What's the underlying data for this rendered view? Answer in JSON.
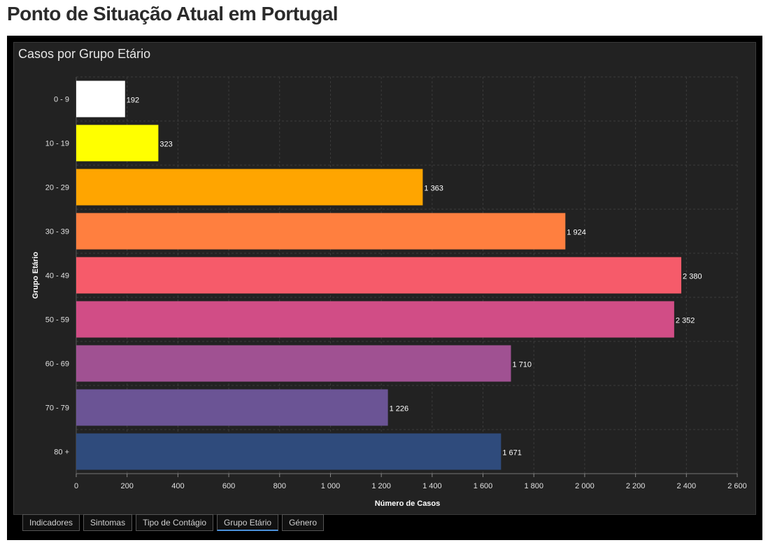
{
  "page": {
    "title": "Ponto de Situação Atual em Portugal"
  },
  "panel": {
    "title": "Casos por Grupo Etário"
  },
  "tabs": [
    {
      "label": "Indicadores",
      "active": false
    },
    {
      "label": "Sintomas",
      "active": false
    },
    {
      "label": "Tipo de Contágio",
      "active": false
    },
    {
      "label": "Grupo Etário",
      "active": true
    },
    {
      "label": "Género",
      "active": false
    }
  ],
  "chart_data": {
    "type": "bar",
    "orientation": "horizontal",
    "categories": [
      "0 - 9",
      "10 - 19",
      "20 - 29",
      "30 - 39",
      "40 - 49",
      "50 - 59",
      "60 - 69",
      "70 - 79",
      "80 +"
    ],
    "values": [
      192,
      323,
      1363,
      1924,
      2380,
      2352,
      1710,
      1226,
      1671
    ],
    "value_labels": [
      "192",
      "323",
      "1 363",
      "1 924",
      "2 380",
      "2 352",
      "1 710",
      "1 226",
      "1 671"
    ],
    "colors": [
      "#ffffff",
      "#ffff00",
      "#ffa500",
      "#ff7f3f",
      "#f65b6a",
      "#d14d86",
      "#a05192",
      "#6b5495",
      "#2f4b7c"
    ],
    "xlabel": "Número de Casos",
    "ylabel": "Grupo Etário",
    "xlim": [
      0,
      2600
    ],
    "xticks": [
      0,
      200,
      400,
      600,
      800,
      1000,
      1200,
      1400,
      1600,
      1800,
      2000,
      2200,
      2400,
      2600
    ],
    "xtick_labels": [
      "0",
      "200",
      "400",
      "600",
      "800",
      "1 000",
      "1 200",
      "1 400",
      "1 600",
      "1 800",
      "2 000",
      "2 200",
      "2 400",
      "2 600"
    ],
    "grid": true
  }
}
